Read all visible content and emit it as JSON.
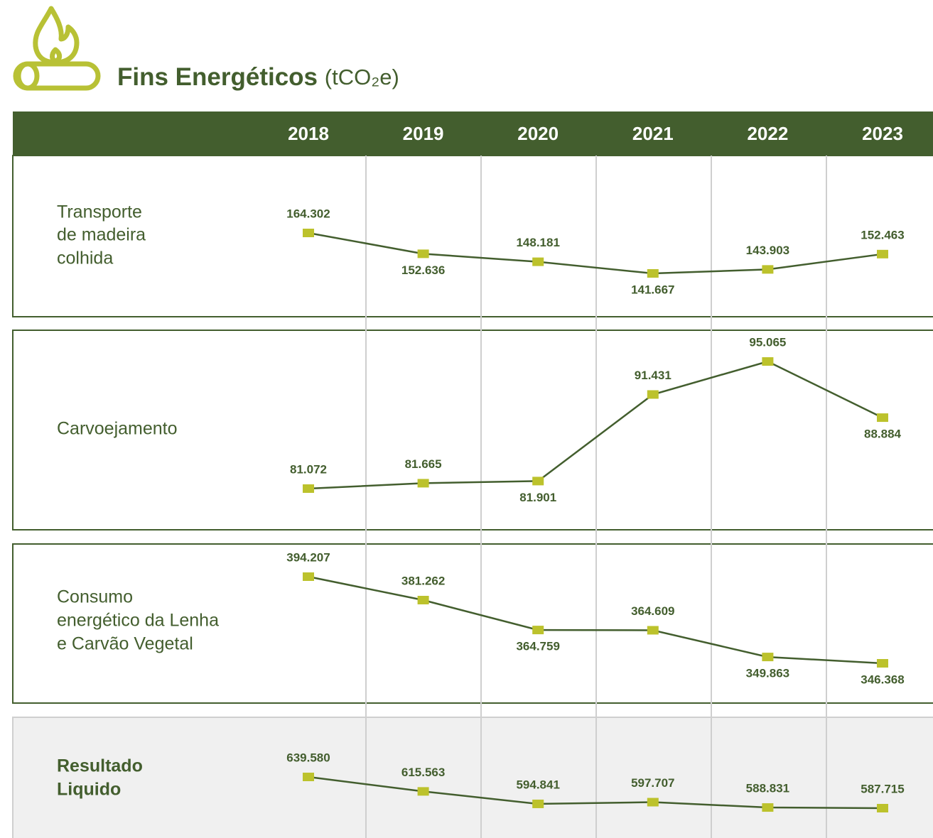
{
  "title": "Fins Energéticos",
  "unit": "(tCO₂e)",
  "header": {
    "years": [
      "2018",
      "2019",
      "2020",
      "2021",
      "2022",
      "2023"
    ]
  },
  "chart_data": [
    {
      "type": "line",
      "label": [
        "Transporte",
        "de madeira",
        "colhida"
      ],
      "color": "#435e2e",
      "marker_color": "#bcc22c",
      "values": [
        164302,
        152636,
        148181,
        141667,
        143903,
        152463
      ],
      "value_labels": [
        "164.302",
        "152.636",
        "148.181",
        "141.667",
        "143.903",
        "152.463"
      ]
    },
    {
      "type": "line",
      "label": [
        "Carvoejamento"
      ],
      "color": "#435e2e",
      "marker_color": "#bcc22c",
      "values": [
        81072,
        81665,
        81901,
        91431,
        95065,
        88884
      ],
      "value_labels": [
        "81.072",
        "81.665",
        "81.901",
        "91.431",
        "95.065",
        "88.884"
      ]
    },
    {
      "type": "line",
      "label": [
        "Consumo",
        "energético da Lenha",
        "e Carvão Vegetal"
      ],
      "color": "#435e2e",
      "marker_color": "#bcc22c",
      "values": [
        394207,
        381262,
        364759,
        364609,
        349863,
        346368
      ],
      "value_labels": [
        "394.207",
        "381.262",
        "364.759",
        "364.609",
        "349.863",
        "346.368"
      ]
    },
    {
      "type": "line",
      "label": [
        "Resultado",
        "Liquido"
      ],
      "color": "#435e2e",
      "marker_color": "#bcc22c",
      "values": [
        639580,
        615563,
        594841,
        597707,
        588831,
        587715
      ],
      "value_labels": [
        "639.580",
        "615.563",
        "594.841",
        "597.707",
        "588.831",
        "587.715"
      ]
    }
  ]
}
